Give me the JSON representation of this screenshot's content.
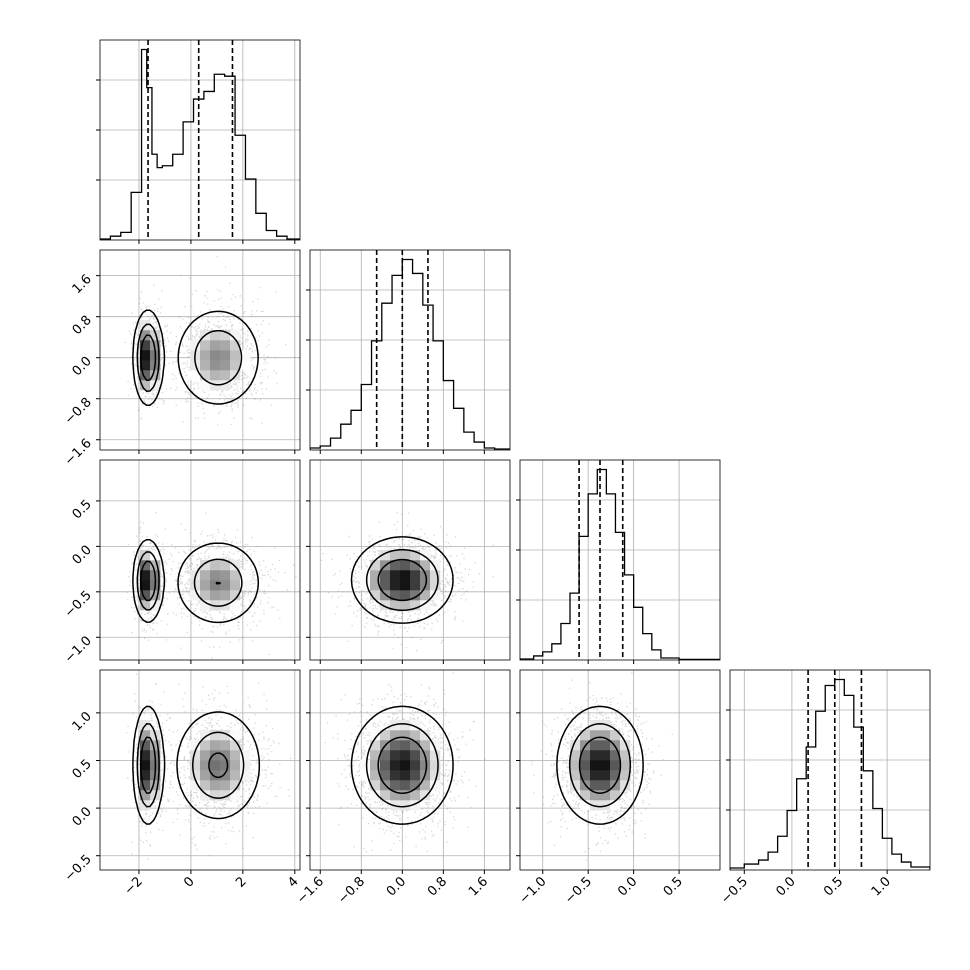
{
  "chart_data": {
    "type": "corner",
    "parameters": [
      {
        "name": "",
        "range": [
          -3.5,
          4.2
        ],
        "ticks": [
          -2,
          0,
          2,
          4
        ],
        "quantiles": [
          -1.65,
          0.3,
          1.6
        ]
      },
      {
        "name": "",
        "range": [
          -1.8,
          2.1
        ],
        "ticks": [
          -1.6,
          -0.8,
          0.0,
          0.8,
          1.6
        ],
        "quantiles": [
          -0.5,
          0.0,
          0.5
        ]
      },
      {
        "name": "",
        "range": [
          -1.25,
          0.95
        ],
        "ticks": [
          -1.0,
          -0.5,
          0.0,
          0.5
        ],
        "quantiles": [
          -0.6,
          -0.37,
          -0.12
        ]
      },
      {
        "name": "",
        "range": [
          -0.65,
          1.45
        ],
        "ticks": [
          -0.5,
          0.0,
          0.5,
          1.0
        ],
        "quantiles": [
          0.17,
          0.45,
          0.73
        ]
      }
    ],
    "tick_labels": {
      "p0": [
        "−2",
        "0",
        "2",
        "4"
      ],
      "p1": [
        "−1.6",
        "−0.8",
        "0.0",
        "0.8",
        "1.6"
      ],
      "p2": [
        "−1.0",
        "−0.5",
        "0.0",
        "0.5"
      ],
      "p3": [
        "−0.5",
        "0.0",
        "0.5",
        "1.0"
      ]
    },
    "histograms": [
      {
        "param": 0,
        "bins": [
          -3.5,
          -3.1,
          -2.7,
          -2.3,
          -1.9,
          -1.7,
          -1.5,
          -1.3,
          -1.1,
          -0.7,
          -0.3,
          0.1,
          0.5,
          0.9,
          1.3,
          1.7,
          2.1,
          2.5,
          2.9,
          3.3,
          3.7,
          4.2
        ],
        "counts": [
          0.005,
          0.02,
          0.04,
          0.25,
          1.0,
          0.8,
          0.45,
          0.38,
          0.39,
          0.45,
          0.62,
          0.74,
          0.78,
          0.87,
          0.86,
          0.55,
          0.32,
          0.14,
          0.05,
          0.02,
          0.005
        ]
      },
      {
        "param": 1,
        "bins": [
          -1.8,
          -1.6,
          -1.4,
          -1.2,
          -1.0,
          -0.8,
          -0.6,
          -0.4,
          -0.2,
          0.0,
          0.2,
          0.4,
          0.6,
          0.8,
          1.0,
          1.2,
          1.4,
          1.6,
          1.8,
          2.1
        ],
        "counts": [
          0.01,
          0.02,
          0.06,
          0.13,
          0.2,
          0.33,
          0.55,
          0.74,
          0.88,
          0.96,
          0.89,
          0.73,
          0.55,
          0.35,
          0.21,
          0.09,
          0.04,
          0.01,
          0.005
        ]
      },
      {
        "param": 2,
        "bins": [
          -1.25,
          -1.1,
          -1.0,
          -0.9,
          -0.8,
          -0.7,
          -0.6,
          -0.5,
          -0.4,
          -0.3,
          -0.2,
          -0.1,
          0.0,
          0.1,
          0.2,
          0.3,
          0.5,
          0.95
        ],
        "counts": [
          0.005,
          0.02,
          0.04,
          0.08,
          0.18,
          0.33,
          0.61,
          0.82,
          0.94,
          0.82,
          0.63,
          0.42,
          0.26,
          0.13,
          0.05,
          0.01,
          0.003
        ]
      },
      {
        "param": 3,
        "bins": [
          -0.65,
          -0.5,
          -0.35,
          -0.25,
          -0.15,
          -0.05,
          0.05,
          0.15,
          0.25,
          0.35,
          0.45,
          0.55,
          0.65,
          0.75,
          0.85,
          0.95,
          1.05,
          1.15,
          1.25,
          1.45
        ],
        "counts": [
          0.01,
          0.03,
          0.05,
          0.09,
          0.17,
          0.3,
          0.46,
          0.62,
          0.8,
          0.93,
          0.96,
          0.88,
          0.72,
          0.5,
          0.31,
          0.16,
          0.08,
          0.04,
          0.015
        ]
      }
    ],
    "joint_densities": [
      {
        "x": 0,
        "y": 1,
        "modes": [
          {
            "mx": -1.65,
            "my": 0.0,
            "sx": 0.28,
            "sy": 0.45,
            "w": 0.33
          },
          {
            "mx": 1.05,
            "my": 0.0,
            "sx": 0.85,
            "sy": 0.5,
            "w": 0.67
          }
        ]
      },
      {
        "x": 0,
        "y": 2,
        "modes": [
          {
            "mx": -1.65,
            "my": -0.38,
            "sx": 0.28,
            "sy": 0.22,
            "w": 0.33
          },
          {
            "mx": 1.05,
            "my": -0.4,
            "sx": 0.85,
            "sy": 0.24,
            "w": 0.67
          }
        ]
      },
      {
        "x": 0,
        "y": 3,
        "modes": [
          {
            "mx": -1.65,
            "my": 0.45,
            "sx": 0.28,
            "sy": 0.3,
            "w": 0.33
          },
          {
            "mx": 1.05,
            "my": 0.45,
            "sx": 0.85,
            "sy": 0.3,
            "w": 0.67
          }
        ]
      },
      {
        "x": 1,
        "y": 2,
        "modes": [
          {
            "mx": 0.0,
            "my": -0.37,
            "sx": 0.48,
            "sy": 0.23,
            "w": 1.0
          }
        ]
      },
      {
        "x": 1,
        "y": 3,
        "modes": [
          {
            "mx": 0.0,
            "my": 0.45,
            "sx": 0.48,
            "sy": 0.3,
            "w": 1.0
          }
        ]
      },
      {
        "x": 2,
        "y": 3,
        "modes": [
          {
            "mx": -0.37,
            "my": 0.45,
            "sx": 0.23,
            "sy": 0.3,
            "w": 1.0
          }
        ]
      }
    ],
    "grid": true,
    "title": "",
    "xlabel": "",
    "ylabel": ""
  },
  "colors": {
    "line": "#000000",
    "grid": "#b0b0b0",
    "scatter": "#8c8c8c"
  }
}
